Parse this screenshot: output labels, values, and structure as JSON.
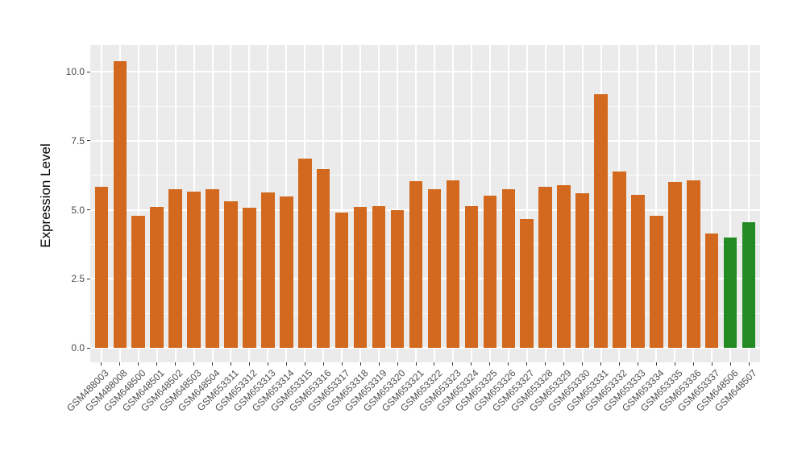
{
  "figure": {
    "background": "#FFFFFF",
    "panel_background": "#EBEBEB",
    "gridline_color": "#FFFFFF",
    "tick_color": "#333333",
    "axis_text_color": "#4D4D4D",
    "axis_title_color": "#000000"
  },
  "chart_data": {
    "type": "bar",
    "title": "",
    "xlabel": "",
    "ylabel": "Expression Level",
    "legend_position": "none",
    "grid": "white major and minor horizontal gridlines plus vertical gridlines at each category center, on gray panel (ggplot2 theme_gray style)",
    "ylim": [
      0,
      10.92
    ],
    "yticks": [
      "0.0",
      "2.5",
      "5.0",
      "7.5",
      "10.0"
    ],
    "ytick_values": [
      0,
      2.5,
      5,
      7.5,
      10
    ],
    "ytick_minor_values": [
      1.25,
      3.75,
      6.25,
      8.75
    ],
    "bar_palette": {
      "orange": "#D2691E",
      "green": "#228B22"
    },
    "categories": [
      "GSM488003",
      "GSM488008",
      "GSM648500",
      "GSM648501",
      "GSM648502",
      "GSM648503",
      "GSM648504",
      "GSM653311",
      "GSM653312",
      "GSM653313",
      "GSM653314",
      "GSM653315",
      "GSM653316",
      "GSM653317",
      "GSM653318",
      "GSM653319",
      "GSM653320",
      "GSM653321",
      "GSM653322",
      "GSM653323",
      "GSM653324",
      "GSM653325",
      "GSM653326",
      "GSM653327",
      "GSM653328",
      "GSM653329",
      "GSM653330",
      "GSM653331",
      "GSM653332",
      "GSM653333",
      "GSM653334",
      "GSM653335",
      "GSM653336",
      "GSM653337",
      "GSM648506",
      "GSM648507"
    ],
    "values": [
      5.85,
      10.4,
      4.8,
      5.1,
      5.75,
      5.65,
      5.75,
      5.31,
      5.09,
      5.64,
      5.48,
      6.85,
      6.47,
      4.9,
      5.1,
      5.15,
      5.0,
      6.05,
      5.76,
      6.08,
      5.13,
      5.52,
      5.75,
      4.66,
      5.85,
      5.9,
      5.6,
      9.2,
      6.4,
      5.55,
      4.78,
      6.0,
      6.07,
      4.15,
      4.0,
      4.55
    ],
    "colors": [
      "#D2691E",
      "#D2691E",
      "#D2691E",
      "#D2691E",
      "#D2691E",
      "#D2691E",
      "#D2691E",
      "#D2691E",
      "#D2691E",
      "#D2691E",
      "#D2691E",
      "#D2691E",
      "#D2691E",
      "#D2691E",
      "#D2691E",
      "#D2691E",
      "#D2691E",
      "#D2691E",
      "#D2691E",
      "#D2691E",
      "#D2691E",
      "#D2691E",
      "#D2691E",
      "#D2691E",
      "#D2691E",
      "#D2691E",
      "#D2691E",
      "#D2691E",
      "#D2691E",
      "#D2691E",
      "#D2691E",
      "#D2691E",
      "#D2691E",
      "#D2691E",
      "#228B22",
      "#228B22"
    ]
  }
}
